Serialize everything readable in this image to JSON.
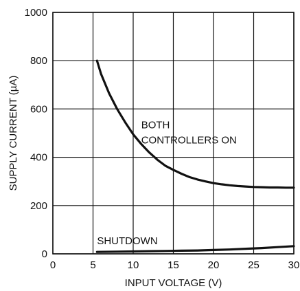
{
  "chart_data": {
    "type": "line",
    "xlabel": "INPUT VOLTAGE (V)",
    "ylabel": "SUPPLY CURRENT (µA)",
    "xlim": [
      0,
      30
    ],
    "ylim": [
      0,
      1000
    ],
    "x_ticks": [
      "0",
      "5",
      "10",
      "15",
      "20",
      "25",
      "30"
    ],
    "y_ticks": [
      "0",
      "200",
      "400",
      "600",
      "800",
      "1000"
    ],
    "grid": true,
    "series": [
      {
        "name": "BOTH CONTROLLERS ON",
        "x": [
          5.5,
          6,
          7,
          8,
          9,
          10,
          11,
          12,
          13,
          14,
          15,
          16,
          17,
          18,
          19,
          20,
          21,
          22,
          23,
          24,
          25,
          26,
          27,
          28,
          29,
          30
        ],
        "y": [
          800,
          745,
          665,
          600,
          545,
          495,
          455,
          420,
          390,
          365,
          348,
          332,
          318,
          308,
          300,
          293,
          288,
          284,
          281,
          279,
          277,
          276,
          275,
          275,
          274,
          274
        ],
        "color": "#111111"
      },
      {
        "name": "SHUTDOWN",
        "x": [
          5.5,
          8,
          10,
          12,
          14,
          16,
          18,
          20,
          22,
          24,
          26,
          28,
          30
        ],
        "y": [
          8,
          9,
          10,
          11,
          12,
          13,
          14,
          16,
          18,
          21,
          24,
          28,
          32
        ],
        "color": "#111111"
      }
    ],
    "annotations": [
      {
        "lines": [
          "BOTH",
          "CONTROLLERS ON"
        ],
        "x": 11,
        "y": 520
      },
      {
        "lines": [
          "SHUTDOWN"
        ],
        "x": 5.5,
        "y": 40
      }
    ]
  }
}
